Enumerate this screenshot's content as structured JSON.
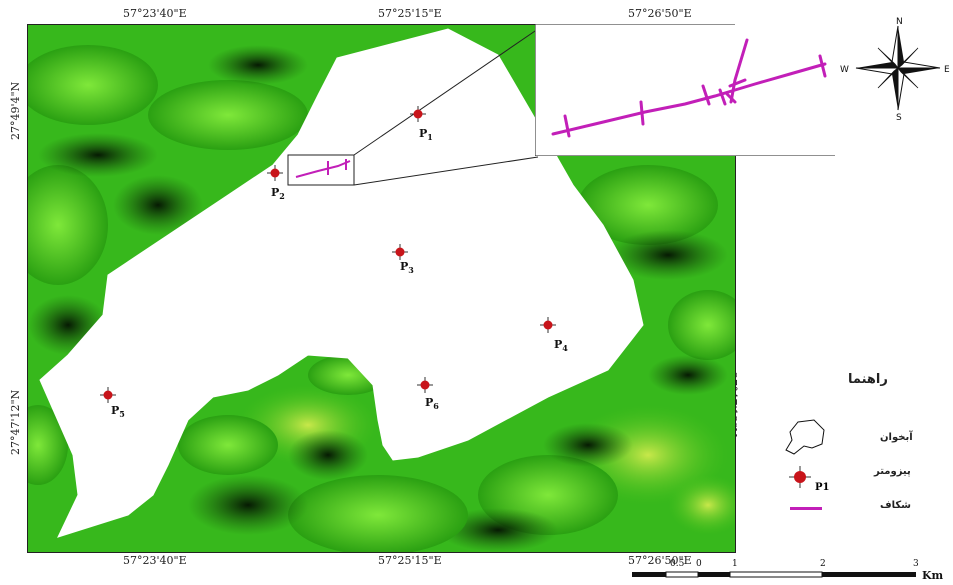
{
  "coords": {
    "top_left": "57°23'40\"E",
    "top_mid": "57°25'15\"E",
    "top_right": "57°26'50\"E",
    "bottom_left": "57°23'40\"E",
    "bottom_mid": "57°25'15\"E",
    "bottom_right": "57°26'50\"E",
    "left_top": "27°49'4\"N",
    "left_bottom": "27°47'12\"N",
    "right_bottom": "27°47'12\"N"
  },
  "piezometers": [
    {
      "id": "P1",
      "letter": "P",
      "sub": "1"
    },
    {
      "id": "P2",
      "letter": "P",
      "sub": "2"
    },
    {
      "id": "P3",
      "letter": "P",
      "sub": "3"
    },
    {
      "id": "P4",
      "letter": "P",
      "sub": "4"
    },
    {
      "id": "P5",
      "letter": "P",
      "sub": "5"
    },
    {
      "id": "P6",
      "letter": "P",
      "sub": "6"
    }
  ],
  "compass": {
    "n": "N",
    "s": "S",
    "e": "E",
    "w": "W"
  },
  "legend": {
    "title": "راهنما",
    "aquifer": "آبخوان",
    "piezometer": "پیزومتر",
    "piezometer_sample": "P1",
    "fracture": "شکاف"
  },
  "scale": {
    "ticks": [
      "0.5",
      "0",
      "1",
      "2",
      "3"
    ],
    "unit": "Km"
  },
  "colors": {
    "terrain_green": "#35c21a",
    "terrain_dark": "#0a2a05",
    "aquifer_fill": "#ffffff",
    "piezometer_red": "#c8141a",
    "fracture_magenta": "#c21fb8"
  }
}
